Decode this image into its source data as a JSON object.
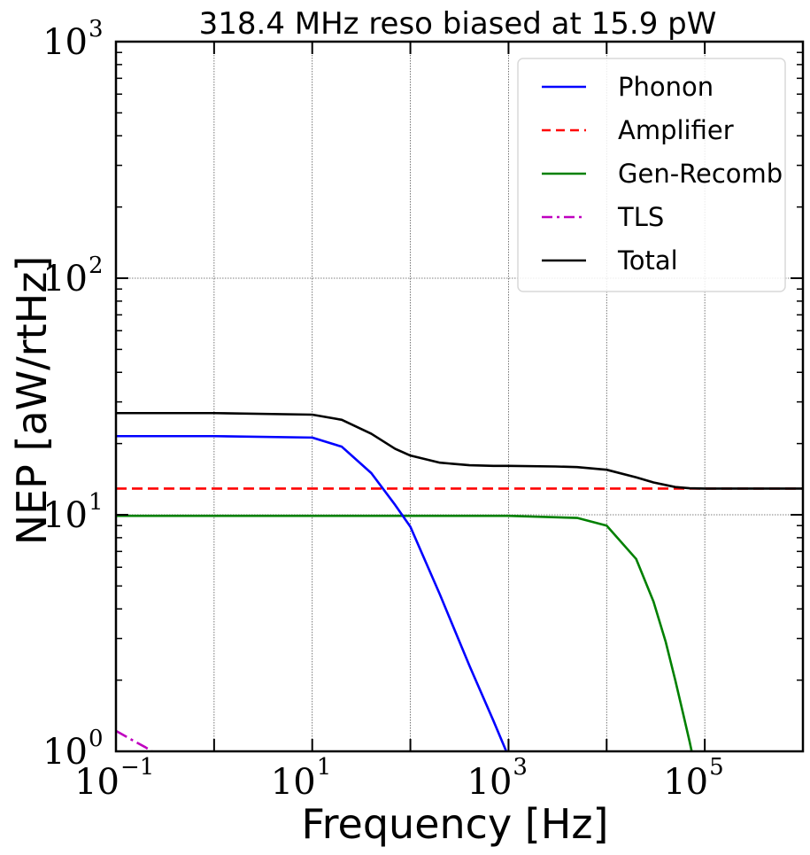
{
  "chart_data": {
    "type": "line",
    "title": "318.4 MHz reso biased at 15.9 pW",
    "xlabel": "Frequency [Hz]",
    "ylabel": "NEP [aW/rtHz]",
    "xscale": "log",
    "yscale": "log",
    "xlim": [
      0.1,
      1000000
    ],
    "ylim": [
      1,
      1000
    ],
    "grid": true,
    "legend_position": "top-right",
    "x_ticks": [
      {
        "value": 0.1,
        "base": "10",
        "exp": "−1"
      },
      {
        "value": 10,
        "base": "10",
        "exp": "1"
      },
      {
        "value": 1000,
        "base": "10",
        "exp": "3"
      },
      {
        "value": 100000,
        "base": "10",
        "exp": "5"
      }
    ],
    "y_ticks": [
      {
        "value": 1,
        "base": "10",
        "exp": "0"
      },
      {
        "value": 10,
        "base": "10",
        "exp": "1"
      },
      {
        "value": 100,
        "base": "10",
        "exp": "2"
      },
      {
        "value": 1000,
        "base": "10",
        "exp": "3"
      }
    ],
    "series": [
      {
        "name": "Phonon",
        "color": "#0000ff",
        "dash": "solid",
        "x": [
          0.1,
          1,
          10,
          20,
          40,
          70,
          100,
          200,
          400,
          700,
          1000
        ],
        "y": [
          21.5,
          21.5,
          21.2,
          19.4,
          15.0,
          11.0,
          8.9,
          4.6,
          2.3,
          1.35,
          0.95
        ]
      },
      {
        "name": "Amplifier",
        "color": "#ff0000",
        "dash": "dashed",
        "x": [
          0.1,
          1000000
        ],
        "y": [
          12.9,
          12.9
        ]
      },
      {
        "name": "Gen-Recomb",
        "color": "#008000",
        "dash": "solid",
        "x": [
          0.1,
          1,
          10,
          100,
          1000,
          5000,
          10000,
          20000,
          30000,
          40000,
          50000,
          60000,
          70000,
          80000
        ],
        "y": [
          9.9,
          9.9,
          9.9,
          9.9,
          9.9,
          9.7,
          9.0,
          6.5,
          4.3,
          2.9,
          2.0,
          1.45,
          1.1,
          0.85
        ]
      },
      {
        "name": "TLS",
        "color": "#bf00bf",
        "dash": "dashdot",
        "x": [
          0.1,
          0.15,
          0.2,
          0.25
        ],
        "y": [
          1.22,
          1.11,
          1.04,
          0.98
        ]
      },
      {
        "name": "Total",
        "color": "#000000",
        "dash": "solid",
        "x": [
          0.1,
          1,
          10,
          20,
          40,
          70,
          100,
          200,
          400,
          700,
          1000,
          3000,
          5000,
          10000,
          20000,
          30000,
          50000,
          70000,
          100000,
          200000,
          1000000
        ],
        "y": [
          26.9,
          26.9,
          26.5,
          25.2,
          22.0,
          19.0,
          17.8,
          16.6,
          16.2,
          16.1,
          16.1,
          16.0,
          15.9,
          15.5,
          14.4,
          13.7,
          13.1,
          12.95,
          12.9,
          12.9,
          12.9
        ]
      }
    ]
  }
}
